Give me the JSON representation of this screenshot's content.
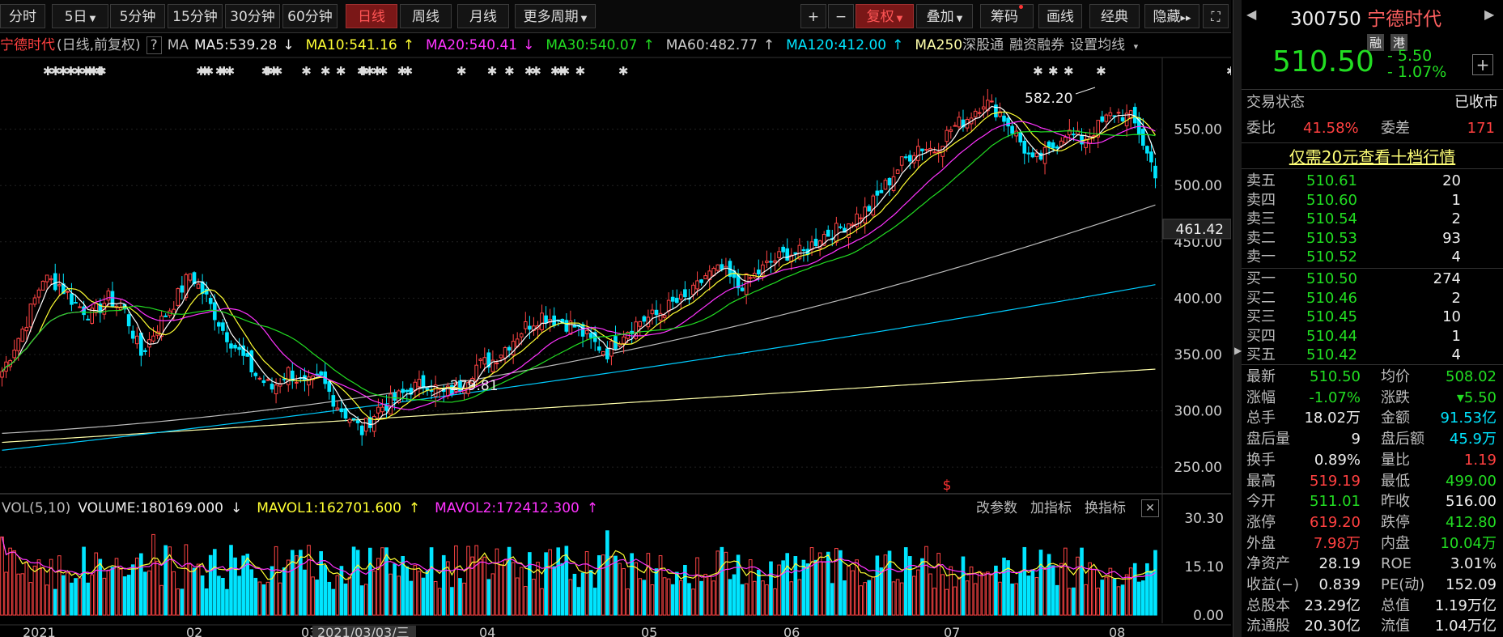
{
  "toolbar": {
    "periods": [
      "分时",
      "5日",
      "5分钟",
      "15分钟",
      "30分钟",
      "60分钟",
      "日线",
      "周线",
      "月线",
      "更多周期"
    ],
    "active_period": "日线",
    "zoom_in": "+",
    "zoom_out": "−",
    "rights": "复权",
    "overlay": "叠加",
    "chips": "筹码",
    "draw": "画线",
    "classic": "经典",
    "hide": "隐藏",
    "more_arrows": "▸▸",
    "expand_icon": "expand-icon"
  },
  "info_bar": {
    "stock_name": "宁德时代",
    "mode": "(日线,前复权)",
    "help": "?",
    "ma_label": "MA",
    "ma5": "MA5:539.28",
    "ma5_arrow": "↓",
    "ma10": "MA10:541.16",
    "ma10_arrow": "↑",
    "ma20": "MA20:540.41",
    "ma20_arrow": "↓",
    "ma30": "MA30:540.07",
    "ma30_arrow": "↑",
    "ma60": "MA60:482.77",
    "ma60_arrow": "↑",
    "ma120": "MA120:412.00",
    "ma120_arrow": "↑",
    "ma250": "MA250",
    "links": [
      "深股通",
      "融资融券"
    ],
    "settings": "设置均线",
    "colors": {
      "ma5": "#ffffff",
      "ma10": "#ffff33",
      "ma20": "#ff33ff",
      "ma30": "#22dd22",
      "ma60": "#bbbbbb",
      "ma120": "#00ccff",
      "ma250": "#ffffaa"
    }
  },
  "vol_bar": {
    "label": "VOL(5,10)",
    "volume": "VOLUME:180169.000",
    "volume_arrow": "↓",
    "mavol1": "MAVOL1:162701.600",
    "mavol1_arrow": "↑",
    "mavol2": "MAVOL2:172412.300",
    "mavol2_arrow": "↑",
    "actions": [
      "改参数",
      "加指标",
      "换指标"
    ],
    "close": "✕"
  },
  "chart_data": {
    "type": "candlestick",
    "price_axis": {
      "ylim": [
        230,
        600
      ],
      "ticks": [
        250.0,
        300.0,
        350.0,
        400.0,
        450.0,
        500.0,
        550.0
      ]
    },
    "cursor_price": "461.42",
    "annotations": [
      {
        "label": "582.20",
        "kind": "high"
      },
      {
        "label": "279.81",
        "kind": "low"
      }
    ],
    "x_labels": [
      "2021",
      "02",
      "03",
      "2021/03/03/三",
      "04",
      "05",
      "06",
      "07",
      "08"
    ],
    "event_markers": "✱",
    "dividend_marker": "$",
    "ma_series": [
      {
        "name": "MA5",
        "color": "#ffffff",
        "last": 539.28
      },
      {
        "name": "MA10",
        "color": "#ffff33",
        "last": 541.16
      },
      {
        "name": "MA20",
        "color": "#ff33ff",
        "last": 540.41
      },
      {
        "name": "MA30",
        "color": "#22dd22",
        "last": 540.07
      },
      {
        "name": "MA60",
        "color": "#bbbbbb",
        "last": 482.77
      },
      {
        "name": "MA120",
        "color": "#00ccff",
        "last": 412.0
      },
      {
        "name": "MA250",
        "color": "#ffffaa",
        "last": 337.0
      }
    ],
    "ma250_start": 272,
    "ma120_start": 265,
    "ma60_start": 280,
    "volume_axis": {
      "ylim": [
        0,
        30.3
      ],
      "ticks": [
        "30.30",
        "15.10",
        "0.00"
      ]
    },
    "price_path_keypoints": [
      [
        0,
        335
      ],
      [
        6,
        380
      ],
      [
        10,
        418
      ],
      [
        14,
        412
      ],
      [
        18,
        395
      ],
      [
        22,
        385
      ],
      [
        26,
        400
      ],
      [
        30,
        388
      ],
      [
        34,
        350
      ],
      [
        38,
        375
      ],
      [
        42,
        396
      ],
      [
        46,
        422
      ],
      [
        50,
        400
      ],
      [
        54,
        372
      ],
      [
        58,
        352
      ],
      [
        62,
        332
      ],
      [
        66,
        320
      ],
      [
        70,
        335
      ],
      [
        74,
        322
      ],
      [
        78,
        328
      ],
      [
        82,
        305
      ],
      [
        86,
        290
      ],
      [
        88,
        282
      ],
      [
        92,
        302
      ],
      [
        96,
        310
      ],
      [
        100,
        320
      ],
      [
        104,
        325
      ],
      [
        108,
        315
      ],
      [
        112,
        322
      ],
      [
        116,
        340
      ],
      [
        120,
        345
      ],
      [
        124,
        360
      ],
      [
        128,
        375
      ],
      [
        132,
        385
      ],
      [
        136,
        380
      ],
      [
        140,
        375
      ],
      [
        144,
        362
      ],
      [
        148,
        352
      ],
      [
        152,
        370
      ],
      [
        156,
        380
      ],
      [
        160,
        385
      ],
      [
        164,
        395
      ],
      [
        168,
        400
      ],
      [
        172,
        420
      ],
      [
        176,
        425
      ],
      [
        180,
        410
      ],
      [
        184,
        420
      ],
      [
        188,
        432
      ],
      [
        192,
        440
      ],
      [
        196,
        440
      ],
      [
        200,
        455
      ],
      [
        204,
        460
      ],
      [
        208,
        470
      ],
      [
        212,
        480
      ],
      [
        216,
        500
      ],
      [
        220,
        520
      ],
      [
        224,
        535
      ],
      [
        228,
        532
      ],
      [
        232,
        550
      ],
      [
        236,
        560
      ],
      [
        240,
        575
      ],
      [
        244,
        565
      ],
      [
        248,
        545
      ],
      [
        252,
        520
      ],
      [
        256,
        530
      ],
      [
        260,
        548
      ],
      [
        264,
        540
      ],
      [
        268,
        552
      ],
      [
        272,
        565
      ],
      [
        276,
        560
      ],
      [
        278,
        548
      ],
      [
        280,
        528
      ],
      [
        282,
        512
      ]
    ]
  },
  "panel": {
    "code": "300750",
    "name": "宁德时代",
    "tags": [
      "融",
      "港"
    ],
    "price": "510.50",
    "change": "- 5.50",
    "change_pct": "- 1.07%",
    "add": "+",
    "status_label": "交易状态",
    "status_value": "已收市",
    "weibi_label": "委比",
    "weibi_value": "41.58%",
    "weicha_label": "委差",
    "weicha_value": "171",
    "promo": "仅需20元查看十档行情",
    "asks": [
      {
        "label": "卖五",
        "price": "510.61",
        "vol": "20"
      },
      {
        "label": "卖四",
        "price": "510.60",
        "vol": "1"
      },
      {
        "label": "卖三",
        "price": "510.54",
        "vol": "2"
      },
      {
        "label": "卖二",
        "price": "510.53",
        "vol": "93"
      },
      {
        "label": "卖一",
        "price": "510.52",
        "vol": "4"
      }
    ],
    "bids": [
      {
        "label": "买一",
        "price": "510.50",
        "vol": "274"
      },
      {
        "label": "买二",
        "price": "510.46",
        "vol": "2"
      },
      {
        "label": "买三",
        "price": "510.45",
        "vol": "10"
      },
      {
        "label": "买四",
        "price": "510.44",
        "vol": "1"
      },
      {
        "label": "买五",
        "price": "510.42",
        "vol": "4"
      }
    ],
    "stats": [
      {
        "l1": "最新",
        "v1": "510.50",
        "c1": "g",
        "l2": "均价",
        "v2": "508.02",
        "c2": "g"
      },
      {
        "l1": "涨幅",
        "v1": "-1.07%",
        "c1": "g",
        "l2": "涨跌",
        "v2": "▾5.50",
        "c2": "g"
      },
      {
        "l1": "总手",
        "v1": "18.02万",
        "c1": "w",
        "l2": "金额",
        "v2": "91.53亿",
        "c2": "c"
      },
      {
        "l1": "盘后量",
        "v1": "9",
        "c1": "w",
        "l2": "盘后额",
        "v2": "45.9万",
        "c2": "c"
      },
      {
        "l1": "换手",
        "v1": "0.89%",
        "c1": "w",
        "l2": "量比",
        "v2": "1.19",
        "c2": "r"
      },
      {
        "l1": "最高",
        "v1": "519.19",
        "c1": "r",
        "l2": "最低",
        "v2": "499.00",
        "c2": "g"
      },
      {
        "l1": "今开",
        "v1": "511.01",
        "c1": "g",
        "l2": "昨收",
        "v2": "516.00",
        "c2": "w"
      },
      {
        "l1": "涨停",
        "v1": "619.20",
        "c1": "r",
        "l2": "跌停",
        "v2": "412.80",
        "c2": "g"
      },
      {
        "l1": "外盘",
        "v1": "7.98万",
        "c1": "r",
        "l2": "内盘",
        "v2": "10.04万",
        "c2": "g"
      },
      {
        "l1": "净资产",
        "v1": "28.19",
        "c1": "w",
        "l2": "ROE",
        "v2": "3.01%",
        "c2": "w"
      },
      {
        "l1": "收益(−)",
        "v1": "0.839",
        "c1": "w",
        "l2": "PE(动)",
        "v2": "152.09",
        "c2": "w"
      },
      {
        "l1": "总股本",
        "v1": "23.29亿",
        "c1": "w",
        "l2": "总值",
        "v2": "1.19万亿",
        "c2": "w"
      },
      {
        "l1": "流通股",
        "v1": "20.30亿",
        "c1": "w",
        "l2": "流值",
        "v2": "1.04万亿",
        "c2": "w"
      }
    ]
  }
}
